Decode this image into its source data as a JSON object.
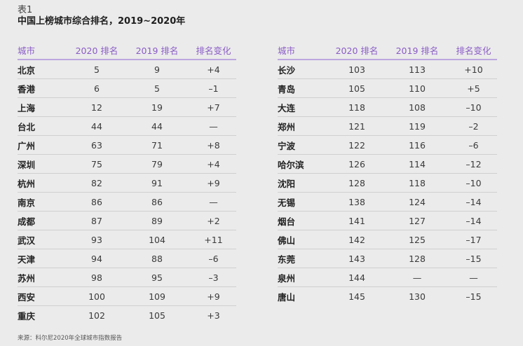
{
  "caption": {
    "label": "表1",
    "title": "中国上榜城市综合排名，2019~2020年"
  },
  "headers": {
    "city": "城市",
    "rank2020": "2020 排名",
    "rank2019": "2019 排名",
    "change": "排名变化"
  },
  "accent_color": "#8a5cc6",
  "left_rows": [
    {
      "city": "北京",
      "rank2020": "5",
      "rank2019": "9",
      "change": "+4"
    },
    {
      "city": "香港",
      "rank2020": "6",
      "rank2019": "5",
      "change": "–1"
    },
    {
      "city": "上海",
      "rank2020": "12",
      "rank2019": "19",
      "change": "+7"
    },
    {
      "city": "台北",
      "rank2020": "44",
      "rank2019": "44",
      "change": "—"
    },
    {
      "city": "广州",
      "rank2020": "63",
      "rank2019": "71",
      "change": "+8"
    },
    {
      "city": "深圳",
      "rank2020": "75",
      "rank2019": "79",
      "change": "+4"
    },
    {
      "city": "杭州",
      "rank2020": "82",
      "rank2019": "91",
      "change": "+9"
    },
    {
      "city": "南京",
      "rank2020": "86",
      "rank2019": "86",
      "change": "—"
    },
    {
      "city": "成都",
      "rank2020": "87",
      "rank2019": "89",
      "change": "+2"
    },
    {
      "city": "武汉",
      "rank2020": "93",
      "rank2019": "104",
      "change": "+11"
    },
    {
      "city": "天津",
      "rank2020": "94",
      "rank2019": "88",
      "change": "–6"
    },
    {
      "city": "苏州",
      "rank2020": "98",
      "rank2019": "95",
      "change": "–3"
    },
    {
      "city": "西安",
      "rank2020": "100",
      "rank2019": "109",
      "change": "+9"
    },
    {
      "city": "重庆",
      "rank2020": "102",
      "rank2019": "105",
      "change": "+3"
    }
  ],
  "right_rows": [
    {
      "city": "长沙",
      "rank2020": "103",
      "rank2019": "113",
      "change": "+10"
    },
    {
      "city": "青岛",
      "rank2020": "105",
      "rank2019": "110",
      "change": "+5"
    },
    {
      "city": "大连",
      "rank2020": "118",
      "rank2019": "108",
      "change": "–10"
    },
    {
      "city": "郑州",
      "rank2020": "121",
      "rank2019": "119",
      "change": "–2"
    },
    {
      "city": "宁波",
      "rank2020": "122",
      "rank2019": "116",
      "change": "–6"
    },
    {
      "city": "哈尔滨",
      "rank2020": "126",
      "rank2019": "114",
      "change": "–12"
    },
    {
      "city": "沈阳",
      "rank2020": "128",
      "rank2019": "118",
      "change": "–10"
    },
    {
      "city": "无锡",
      "rank2020": "138",
      "rank2019": "124",
      "change": "–14"
    },
    {
      "city": "烟台",
      "rank2020": "141",
      "rank2019": "127",
      "change": "–14"
    },
    {
      "city": "佛山",
      "rank2020": "142",
      "rank2019": "125",
      "change": "–17"
    },
    {
      "city": "东莞",
      "rank2020": "143",
      "rank2019": "128",
      "change": "–15"
    },
    {
      "city": "泉州",
      "rank2020": "144",
      "rank2019": "—",
      "change": "—"
    },
    {
      "city": "唐山",
      "rank2020": "145",
      "rank2019": "130",
      "change": "–15"
    }
  ],
  "source": "来源：科尔尼2020年全球城市指数报告"
}
